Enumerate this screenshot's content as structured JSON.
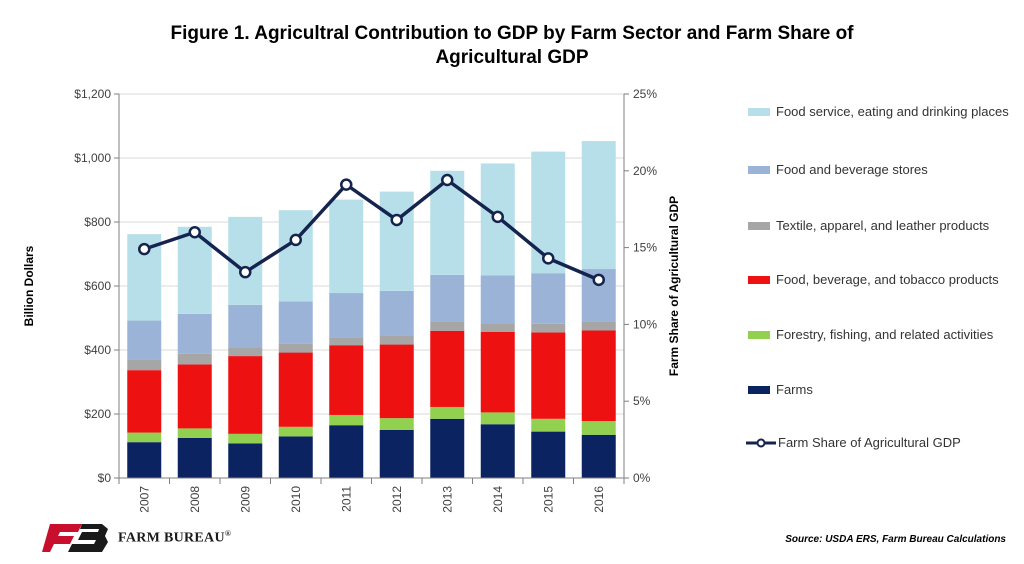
{
  "title": {
    "line1": "Figure 1. Agricultral Contribution to GDP by Farm Sector and Farm Share of",
    "line2": "Agricultural GDP"
  },
  "source": "Source: USDA ERS, Farm Bureau Calculations",
  "logo": {
    "name": "FARM BUREAU",
    "mark": "FB",
    "reg": "®"
  },
  "colors": {
    "food_service": "#b7dfe9",
    "food_bev_stores": "#9bb3d6",
    "textile": "#a6a6a6",
    "food_bev_tobacco": "#ee1111",
    "forestry": "#92d050",
    "farms": "#0c2361",
    "line": "#15244e",
    "brand_red": "#c8102e"
  },
  "chart_data": {
    "type": "bar",
    "stacked": true,
    "categories": [
      "2007",
      "2008",
      "2009",
      "2010",
      "2011",
      "2012",
      "2013",
      "2014",
      "2015",
      "2016"
    ],
    "ylabel": "Billion Dollars",
    "y2label": "Farm Share of Agricultural GDP",
    "ylim": [
      0,
      1200
    ],
    "y2lim": [
      0,
      25
    ],
    "yticks": [
      "$0",
      "$200",
      "$400",
      "$600",
      "$800",
      "$1,000",
      "$1,200"
    ],
    "y2ticks": [
      "0%",
      "5%",
      "10%",
      "15%",
      "20%",
      "25%"
    ],
    "series": [
      {
        "name": "Farms",
        "key": "farms",
        "values": [
          112,
          125,
          108,
          130,
          165,
          150,
          185,
          168,
          145,
          135
        ]
      },
      {
        "name": "Forestry, fishing, and related activities",
        "key": "forestry",
        "values": [
          30,
          30,
          30,
          30,
          32,
          37,
          37,
          37,
          40,
          43
        ]
      },
      {
        "name": "Food, beverage, and tobacco products",
        "key": "food_bev_tobacco",
        "values": [
          195,
          200,
          243,
          232,
          218,
          230,
          238,
          252,
          270,
          283
        ]
      },
      {
        "name": "Textile, apparel, and leather products",
        "key": "textile",
        "values": [
          33,
          33,
          28,
          27,
          25,
          28,
          30,
          26,
          27,
          29
        ]
      },
      {
        "name": "Food and beverage stores",
        "key": "food_bev_stores",
        "values": [
          122,
          125,
          132,
          133,
          138,
          140,
          145,
          150,
          158,
          163
        ]
      },
      {
        "name": "Food service, eating and drinking places",
        "key": "food_service",
        "values": [
          270,
          272,
          275,
          285,
          292,
          310,
          325,
          350,
          380,
          400
        ]
      }
    ],
    "line": {
      "name": "Farm Share of Agricultural GDP",
      "axis": "y2",
      "values": [
        14.9,
        16.0,
        13.4,
        15.5,
        19.1,
        16.8,
        19.4,
        17.0,
        14.3,
        12.9
      ]
    },
    "legend": [
      {
        "key": "food_service",
        "label": "Food service, eating and drinking places"
      },
      {
        "key": "food_bev_stores",
        "label": "Food and beverage stores"
      },
      {
        "key": "textile",
        "label": "Textile, apparel, and leather products"
      },
      {
        "key": "food_bev_tobacco",
        "label": "Food, beverage, and tobacco products"
      },
      {
        "key": "forestry",
        "label": "Forestry, fishing, and related activities"
      },
      {
        "key": "farms",
        "label": "Farms"
      },
      {
        "key": "line",
        "label": "Farm Share of Agricultural GDP"
      }
    ]
  }
}
